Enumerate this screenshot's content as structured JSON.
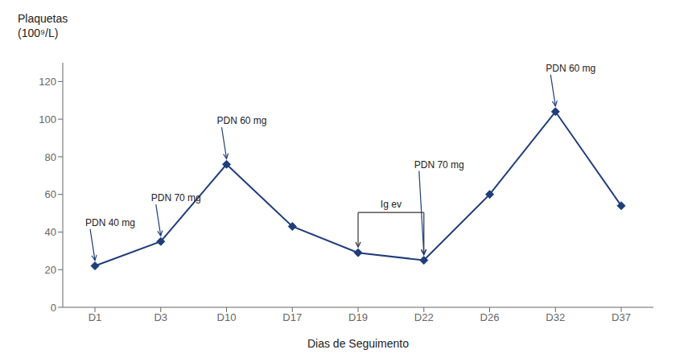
{
  "chart_data": {
    "type": "line",
    "categories": [
      "D1",
      "D3",
      "D10",
      "D17",
      "D19",
      "D22",
      "D26",
      "D32",
      "D37"
    ],
    "values": [
      22,
      35,
      76,
      43,
      29,
      25,
      60,
      104,
      54
    ],
    "color": "#1f3d7a",
    "marker": "diamond",
    "xlabel": "Dias de Seguimento",
    "ylabel": [
      "Plaquetas",
      "(100⁹/L)"
    ],
    "ylim": [
      0,
      130
    ],
    "yticks": [
      0,
      20,
      40,
      60,
      80,
      100,
      120
    ],
    "grid": false,
    "annotations": [
      {
        "text": "PDN 40 mg",
        "x": "D1"
      },
      {
        "text": "PDN 70 mg",
        "x": "D3"
      },
      {
        "text": "PDN 60 mg",
        "x": "D10"
      },
      {
        "text": "PDN 70 mg",
        "x": "D22"
      },
      {
        "text": "PDN 60 mg",
        "x": "D32"
      },
      {
        "text": "Ig ev",
        "x": [
          "D19",
          "D22"
        ]
      }
    ]
  }
}
